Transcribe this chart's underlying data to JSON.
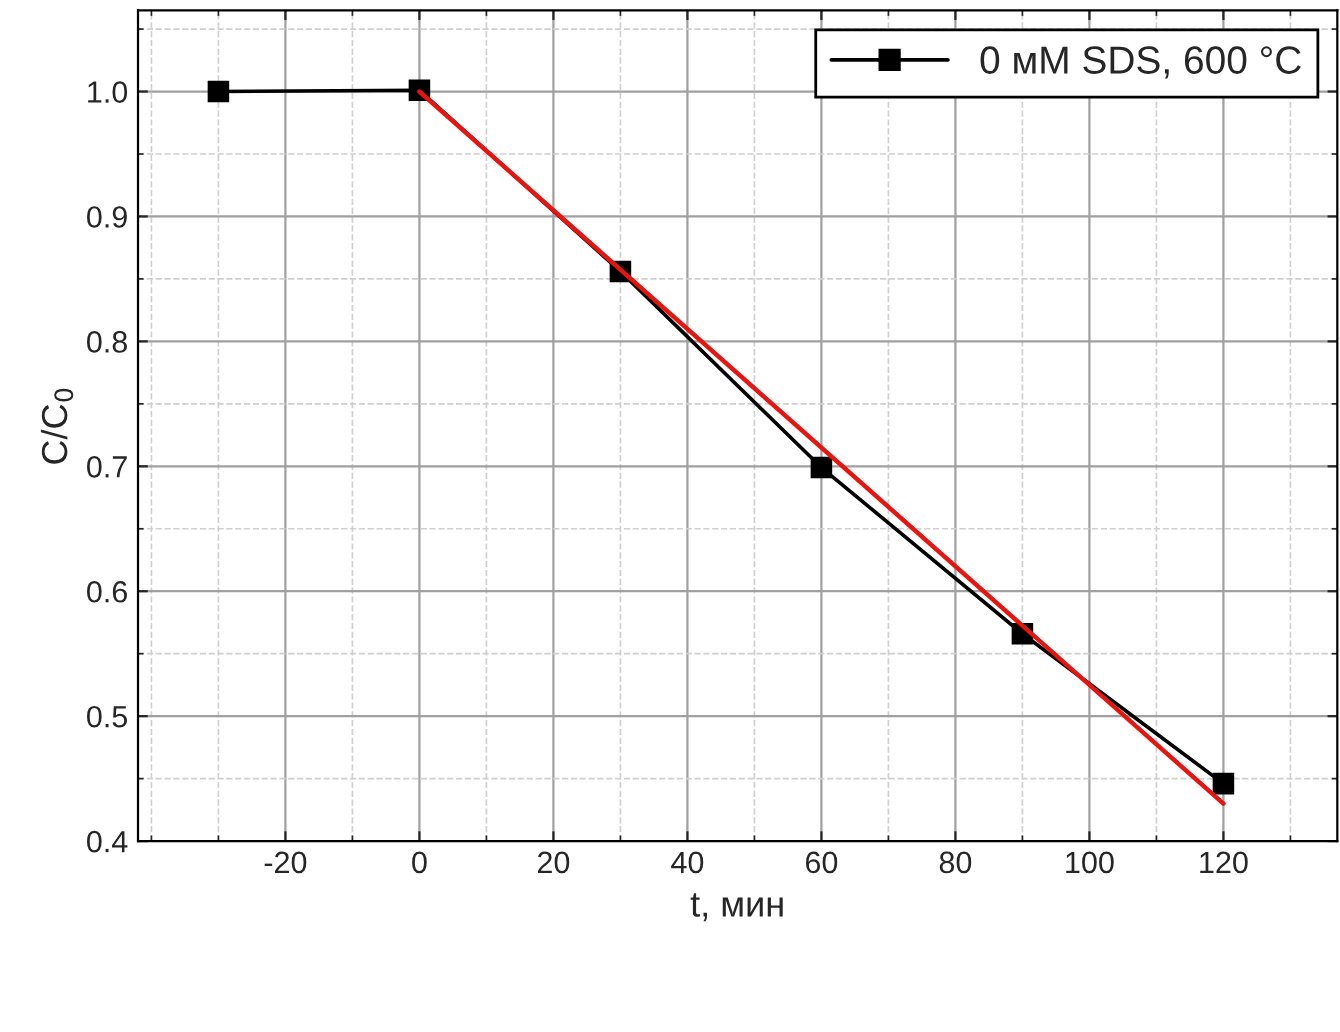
{
  "chart_data": {
    "type": "line",
    "xlabel": "t, мин",
    "ylabel": "C/C$_{0}$",
    "legend": "top right",
    "grid": true,
    "marker": "square",
    "series": [
      {
        "name": "0 мМ SDS, 600 °C",
        "color": "#000000",
        "x": [
          -30,
          0,
          30,
          60,
          90,
          120
        ],
        "values": [
          1.0,
          1.001,
          0.856,
          0.699,
          0.566,
          0.446
        ]
      },
      {
        "type": "line",
        "color": "#e8140f",
        "marker": "none",
        "x": [
          0,
          120
        ],
        "values": [
          1.0,
          0.43
        ]
      }
    ],
    "xlim": [
      -42,
      137
    ],
    "ylim": [
      0.4,
      1.065
    ],
    "xticks": [
      -20,
      0,
      20,
      40,
      60,
      80,
      100,
      120
    ],
    "yticks": [
      0.4,
      0.5,
      0.6,
      0.7,
      0.8,
      0.9,
      {
        "value": 1.0,
        "label": "1.0"
      }
    ]
  }
}
